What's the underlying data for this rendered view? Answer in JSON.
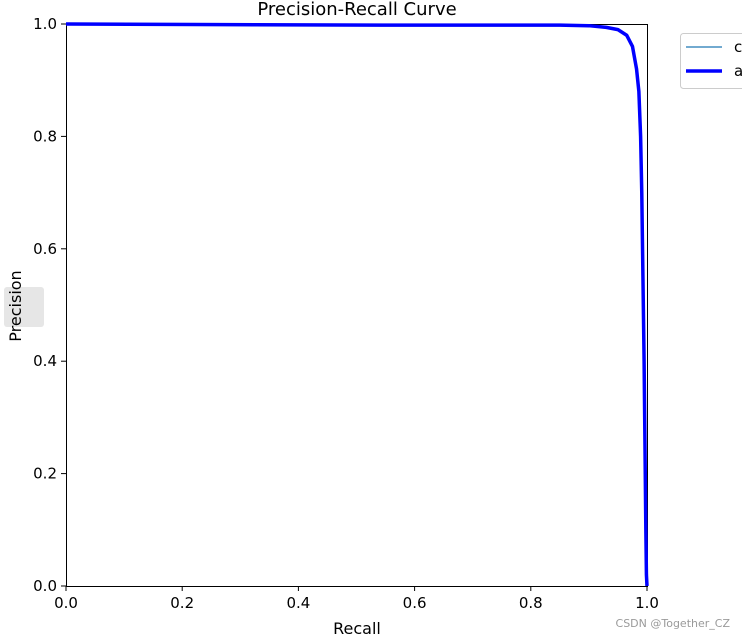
{
  "chart_data": {
    "type": "line",
    "title": "Precision-Recall Curve",
    "xlabel": "Recall",
    "ylabel": "Precision",
    "xlim": [
      0.0,
      1.0
    ],
    "ylim": [
      0.0,
      1.0
    ],
    "xticks": [
      "0.0",
      "0.2",
      "0.4",
      "0.6",
      "0.8",
      "1.0"
    ],
    "yticks": [
      "0.0",
      "0.2",
      "0.4",
      "0.6",
      "0.8",
      "1.0"
    ],
    "grid": false,
    "legend_position": "outside-top-right",
    "series": [
      {
        "name": "c",
        "color": "#1f77b4",
        "style": "thin",
        "x": [
          0.0,
          0.22,
          0.55,
          0.85,
          0.9,
          0.93,
          0.95,
          0.965,
          0.975,
          0.982,
          0.986,
          0.989,
          0.991,
          0.993,
          0.995,
          0.996,
          0.997,
          0.998,
          0.999,
          1.0
        ],
        "y": [
          1.0,
          0.999,
          0.998,
          0.998,
          0.997,
          0.994,
          0.99,
          0.98,
          0.96,
          0.92,
          0.88,
          0.8,
          0.7,
          0.55,
          0.4,
          0.3,
          0.2,
          0.1,
          0.02,
          0.0
        ]
      },
      {
        "name": "a",
        "color": "#0000ff",
        "style": "thick",
        "x": [
          0.0,
          0.22,
          0.55,
          0.85,
          0.9,
          0.93,
          0.95,
          0.965,
          0.975,
          0.982,
          0.986,
          0.989,
          0.991,
          0.993,
          0.995,
          0.996,
          0.997,
          0.998,
          0.999,
          1.0
        ],
        "y": [
          1.0,
          0.999,
          0.998,
          0.998,
          0.997,
          0.994,
          0.99,
          0.98,
          0.96,
          0.92,
          0.88,
          0.8,
          0.7,
          0.55,
          0.4,
          0.3,
          0.2,
          0.1,
          0.02,
          0.0
        ]
      }
    ]
  },
  "watermark": "CSDN @Together_CZ"
}
